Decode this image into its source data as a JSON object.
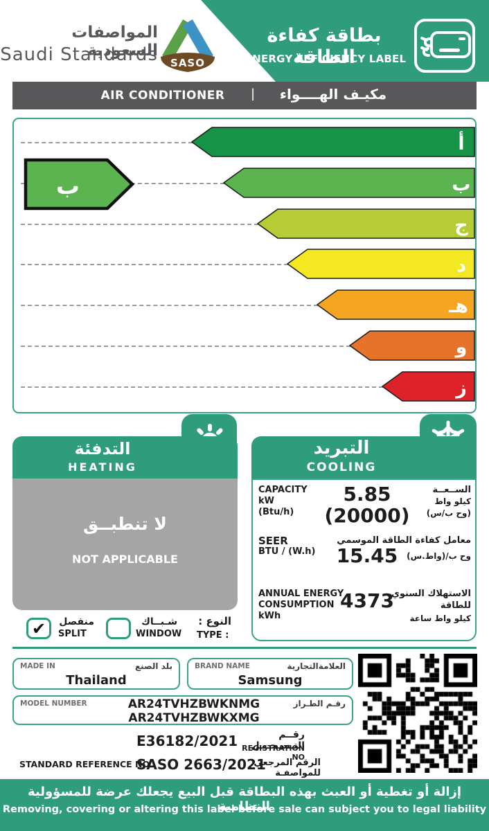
{
  "colors": {
    "brand_green": "#2F9C7B",
    "bar_gray": "#58585A",
    "heating_gray": "#A6A5A5",
    "border_teal": "#3BA188",
    "label_gray": "#6E6F72",
    "dot_gray": "#9A9A9A"
  },
  "header": {
    "org_name_ar": "المواصفات السعودية",
    "org_name_en": "Saudi Standards",
    "logo_text": "SASO",
    "title_ar": "بطاقة كفاءة الطاقة",
    "title_en": "ENERGY EFFICIENCY LABEL"
  },
  "product_bar": {
    "name_en": "AIR CONDITIONER",
    "divider": "|",
    "name_ar": "مكيـف الهــــواء"
  },
  "rating_scale": {
    "grades": [
      {
        "letter": "أ",
        "color": "#169346"
      },
      {
        "letter": "ب",
        "color": "#5CB450"
      },
      {
        "letter": "ج",
        "color": "#B5CC34"
      },
      {
        "letter": "د",
        "color": "#F3E821"
      },
      {
        "letter": "هـ",
        "color": "#F4A622"
      },
      {
        "letter": "و",
        "color": "#E5732A"
      },
      {
        "letter": "ز",
        "color": "#DD2329"
      }
    ],
    "selected": {
      "letter": "ب",
      "color": "#5CB450"
    }
  },
  "heating": {
    "title_ar": "التدفئة",
    "title_en": "HEATING",
    "value_ar": "لا تنطبــق",
    "value_en": "NOT APPLICABLE"
  },
  "cooling": {
    "title_ar": "التبريد",
    "title_en": "COOLING",
    "rows": [
      {
        "en": [
          "CAPACITY",
          "kW",
          "(Btu/h)"
        ],
        "value": "5.85",
        "value2": "(20000)",
        "ar": [
          "الســعــة",
          "كيلو واط",
          "(وح ب/س)"
        ]
      },
      {
        "en": [
          "SEER",
          "BTU / (W.h)"
        ],
        "value": "15.45",
        "ar": [
          "معامل كفاءة الطاقة الموسمي",
          "وح ب/(واط.س)"
        ]
      },
      {
        "en": [
          "ANNUAL ENERGY",
          "CONSUMPTION",
          "kWh"
        ],
        "value": "4373",
        "ar": [
          "الاستهلاك السنوي",
          "للطاقة",
          "كيلو واط ساعة"
        ]
      }
    ]
  },
  "type_row": {
    "label_ar": "النوع :",
    "label_en": "TYPE :",
    "options": [
      {
        "ar": "منفصل",
        "en": "SPLIT",
        "check": "✔"
      },
      {
        "ar": "شـبــاك",
        "en": "WINDOW",
        "check": ""
      }
    ]
  },
  "info": {
    "made_in": {
      "label_en": "MADE IN",
      "label_ar": "بلد الصنع",
      "value": "Thailand"
    },
    "brand": {
      "label_en": "BRAND NAME",
      "label_ar": "العلامةالتجارية",
      "value": "Samsung"
    },
    "model": {
      "label_en": "MODEL NUMBER",
      "label_ar": "رقـم الطـراز",
      "values": [
        "AR24TVHZBWKNMG",
        "AR24TVHZBWKXMG"
      ]
    },
    "registration": {
      "label_ar": "رقــم التـسـجـيـل",
      "value": "E36182/2021",
      "label_en": "REGISTRATION NO"
    },
    "standard": {
      "label_en": "STANDARD REFERENCE NO",
      "value": "SASO 2663/2021",
      "label_ar": "الرقم المرجعي للمواصفـة"
    }
  },
  "footer": {
    "warning_ar": "إزالة أو تغطية أو العبث بهذه البطاقة قبل البيع يجعلك عرضة للمسؤولية النظامية",
    "warning_en": "Removing, covering or altering this label before sale can subject you to legal liability"
  }
}
